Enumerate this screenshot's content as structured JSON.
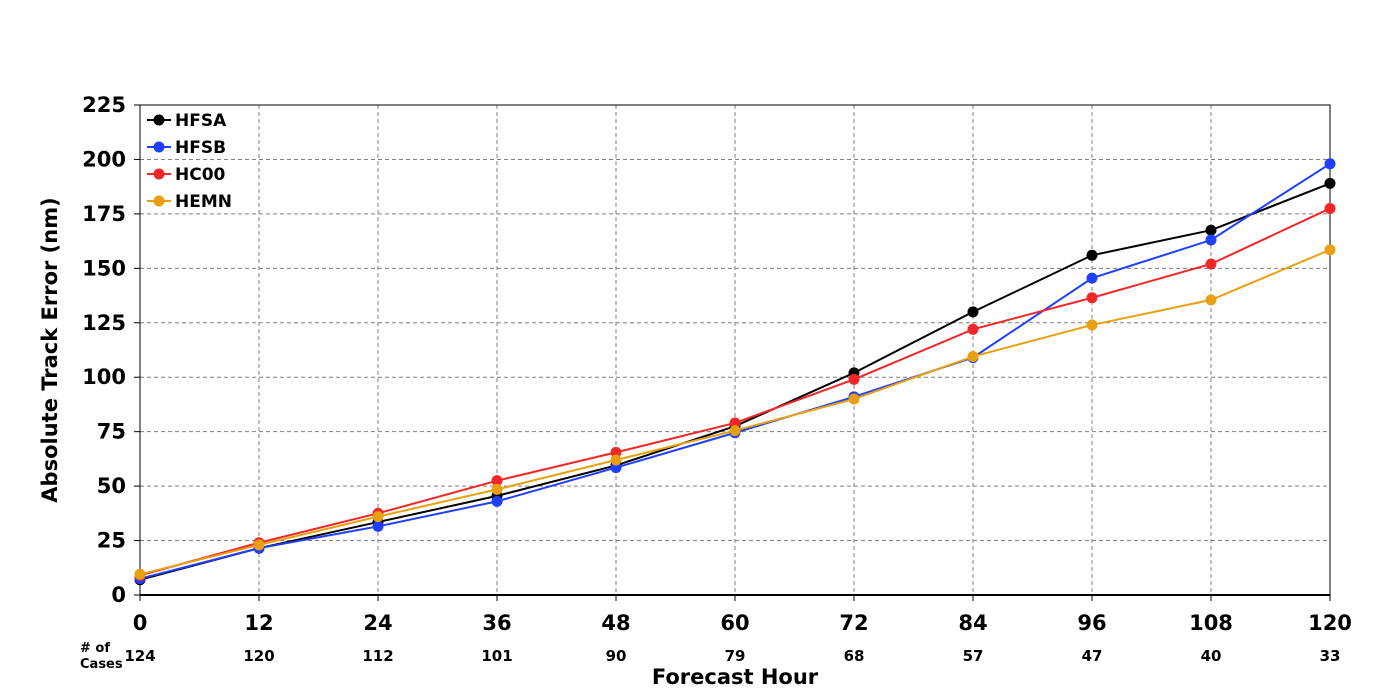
{
  "chart_data": {
    "type": "line",
    "title": "",
    "xlabel": "Forecast Hour",
    "ylabel": "Absolute Track Error (nm)",
    "x": [
      0,
      12,
      24,
      36,
      48,
      60,
      72,
      84,
      96,
      108,
      120
    ],
    "xlim": [
      0,
      120
    ],
    "ylim": [
      0,
      225
    ],
    "xticks": [
      0,
      12,
      24,
      36,
      48,
      60,
      72,
      84,
      96,
      108,
      120
    ],
    "yticks": [
      0,
      25,
      50,
      75,
      100,
      125,
      150,
      175,
      200,
      225
    ],
    "grid": true,
    "legend_position": "top-left",
    "cases_header_line1": "# of",
    "cases_header_line2": "Cases",
    "cases": [
      124,
      120,
      112,
      101,
      90,
      79,
      68,
      57,
      47,
      40,
      33
    ],
    "series": [
      {
        "name": "HFSA",
        "color": "#000000",
        "values": [
          7,
          21.5,
          33.5,
          45.5,
          59.5,
          77.5,
          102,
          130,
          156,
          167.5,
          189
        ]
      },
      {
        "name": "HFSB",
        "color": "#1f3fff",
        "values": [
          7.5,
          21.5,
          31.5,
          43,
          58.5,
          74.5,
          91,
          109,
          145.5,
          163,
          198
        ]
      },
      {
        "name": "HC00",
        "color": "#f22626",
        "values": [
          9,
          24,
          37.5,
          52.5,
          65.5,
          79,
          99,
          122,
          136.5,
          152,
          177.5
        ]
      },
      {
        "name": "HEMN",
        "color": "#e8a010",
        "values": [
          9.5,
          23,
          36,
          48.5,
          62,
          75.5,
          90,
          109.5,
          124,
          135.5,
          158.5
        ]
      }
    ]
  }
}
